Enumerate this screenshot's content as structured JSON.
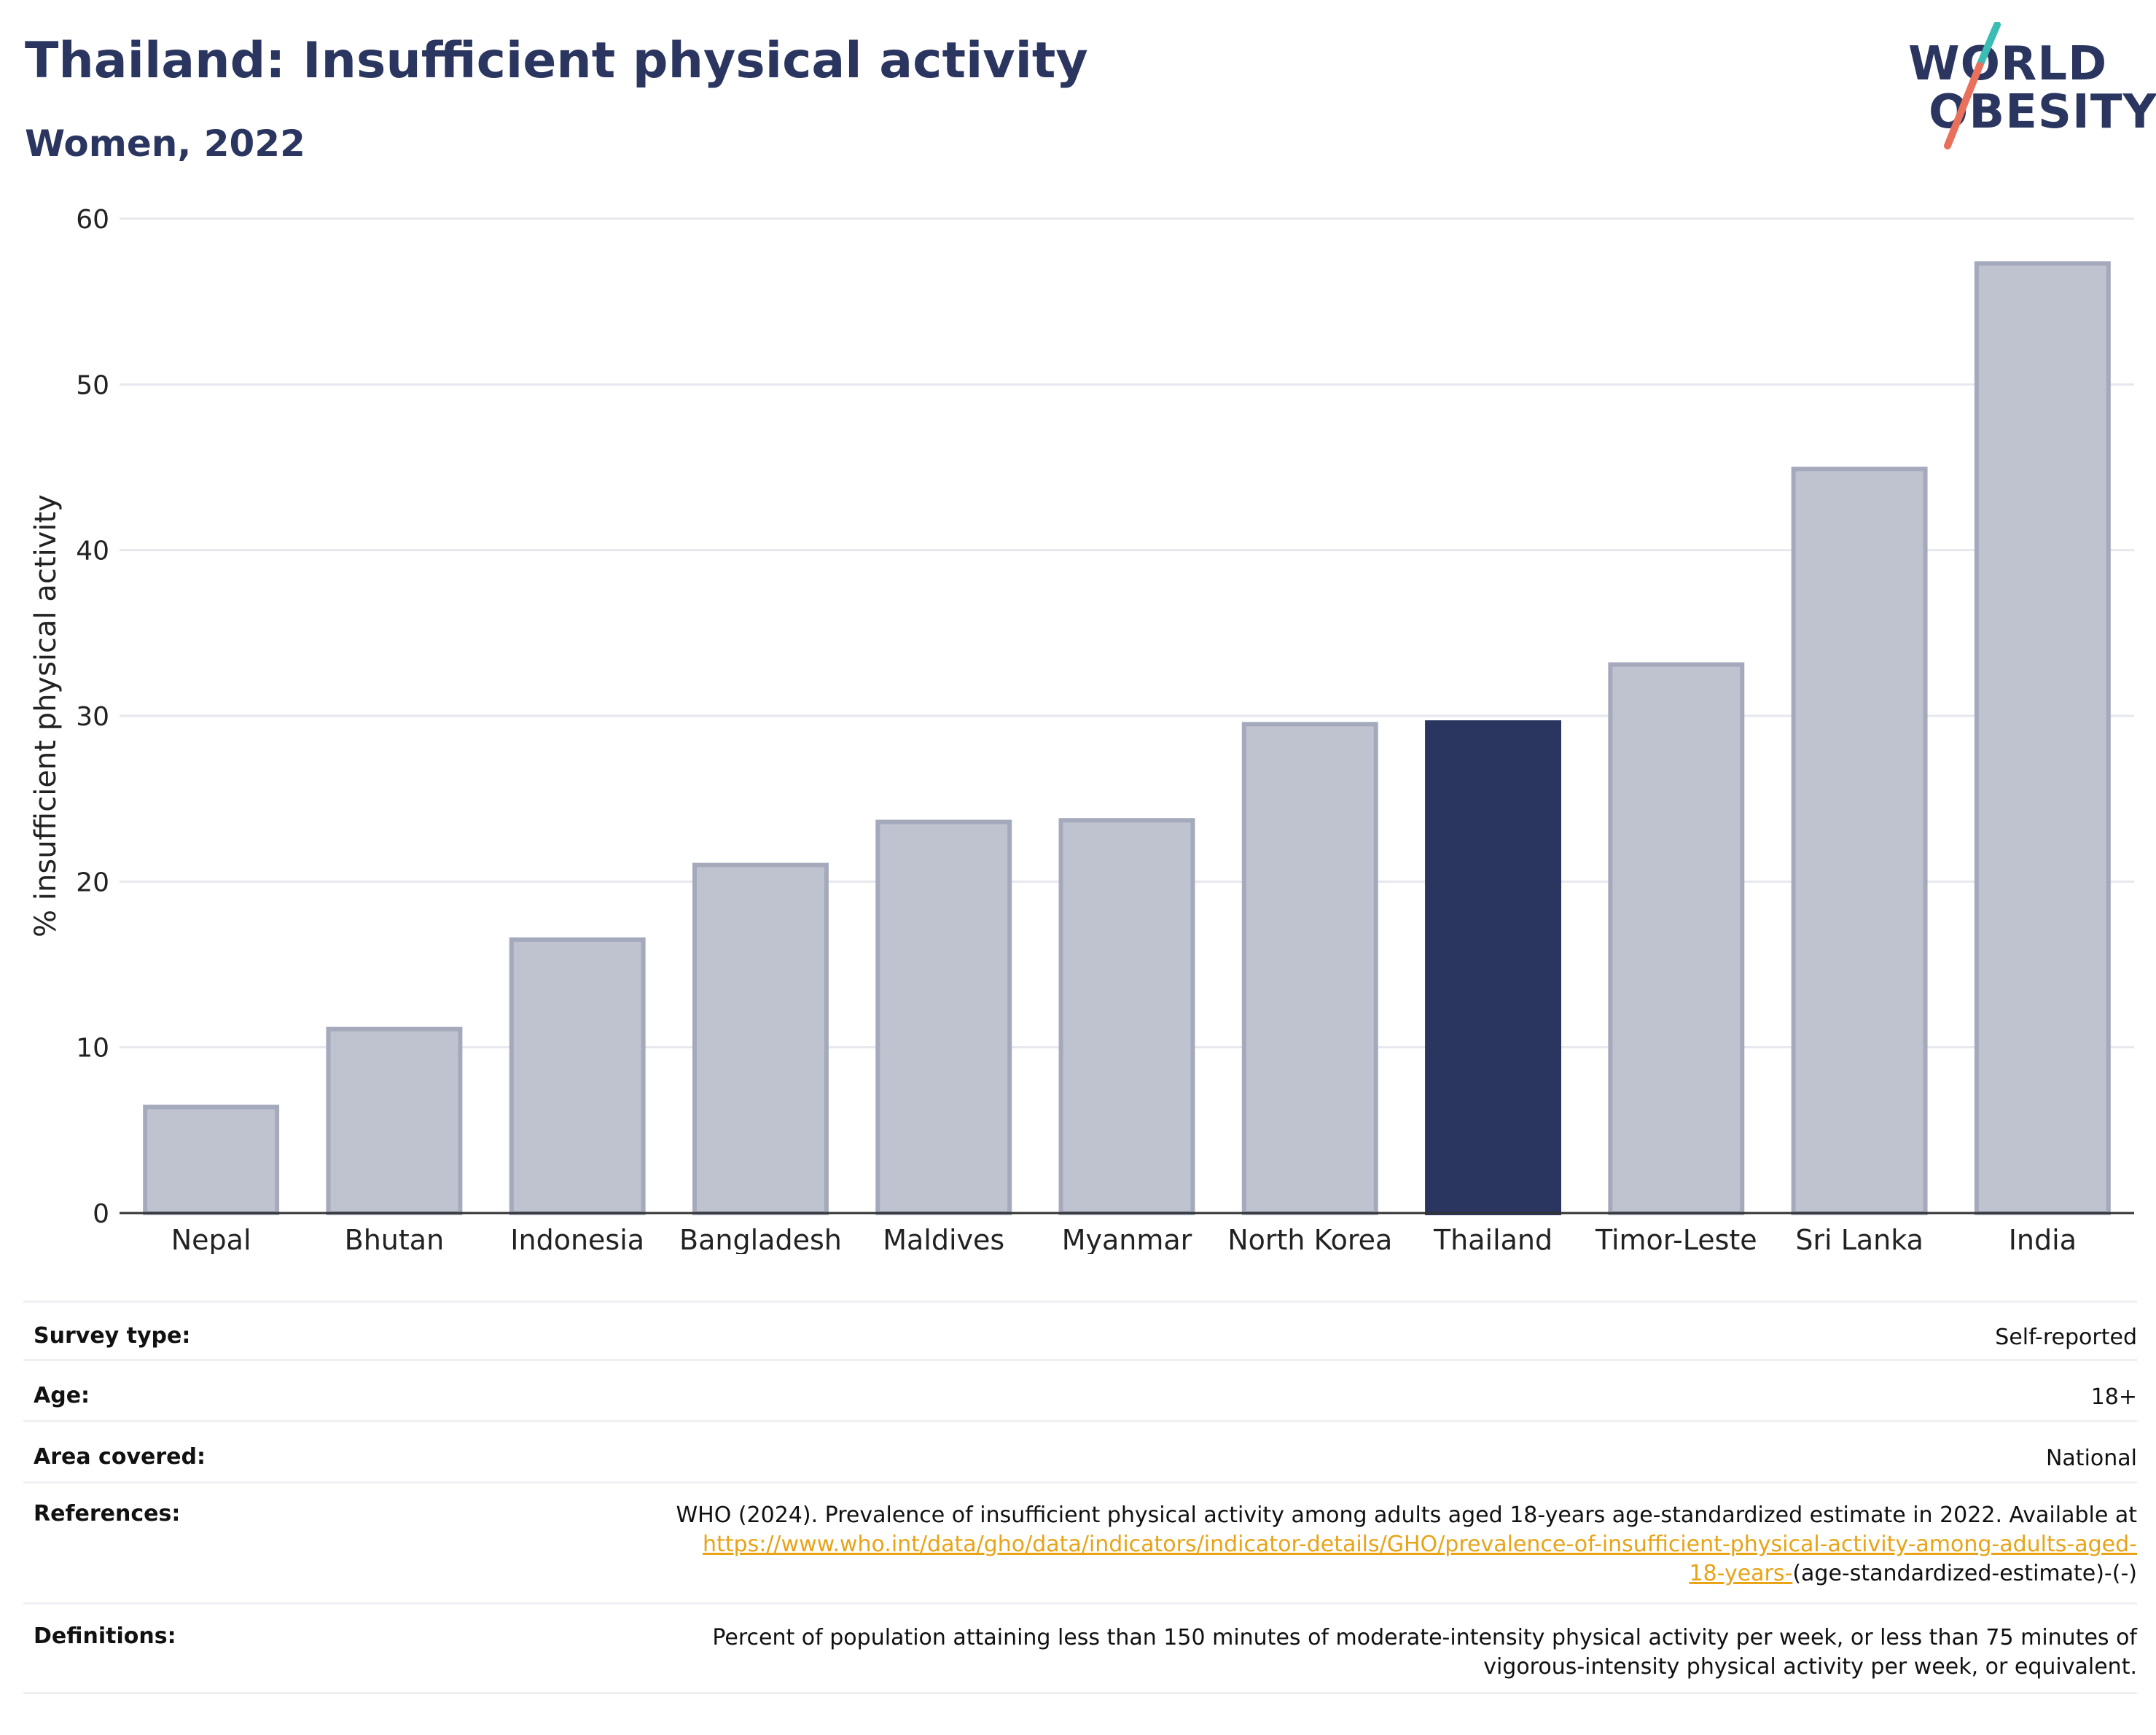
{
  "header": {
    "title": "Thailand: Insufficient physical activity",
    "subtitle": "Women, 2022"
  },
  "logo": {
    "line1": "WORLD",
    "line2": "OBESITY",
    "colors": {
      "text": "#2a3560",
      "slash_top": "#3bbdb4",
      "slash_bottom": "#e8705d"
    }
  },
  "chart_data": {
    "type": "bar",
    "categories": [
      "Nepal",
      "Bhutan",
      "Indonesia",
      "Bangladesh",
      "Maldives",
      "Myanmar",
      "North Korea",
      "Thailand",
      "Timor-Leste",
      "Sri Lanka",
      "India"
    ],
    "values": [
      6.4,
      11.1,
      16.5,
      21.0,
      23.6,
      23.7,
      29.5,
      29.6,
      33.1,
      44.9,
      57.3
    ],
    "highlight": "Thailand",
    "ylabel": "% insufficient physical activity",
    "ylim": [
      0,
      60
    ],
    "yticks": [
      0,
      10,
      20,
      30,
      40,
      50,
      60
    ],
    "grid": true,
    "colors": {
      "bar": "#bfc2cf",
      "bar_border": "#a4a9bc",
      "highlight": "#2a3560",
      "grid": "#e6e8ee",
      "axis": "#333333"
    }
  },
  "info": {
    "survey_type": {
      "label": "Survey type:",
      "value": "Self-reported"
    },
    "age": {
      "label": "Age:",
      "value": "18+"
    },
    "area": {
      "label": "Area covered:",
      "value": "National"
    },
    "references": {
      "label": "References:",
      "text": "WHO (2024). Prevalence of insufficient physical activity among adults aged 18-years age-standardized estimate in 2022. Available at",
      "link1": "https://www.who.int/data/gho/data/indicators/indicator-details/GHO/prevalence-of-insufficient-physical-activity-among-adults-aged-",
      "link2": "18-years-",
      "suffix": "(age-standardized-estimate)-(-)"
    },
    "definitions": {
      "label": "Definitions:",
      "line1": "Percent of population attaining less than 150 minutes of moderate-intensity physical activity per week, or less than 75 minutes of",
      "line2": "vigorous-intensity physical activity per week, or equivalent."
    }
  }
}
